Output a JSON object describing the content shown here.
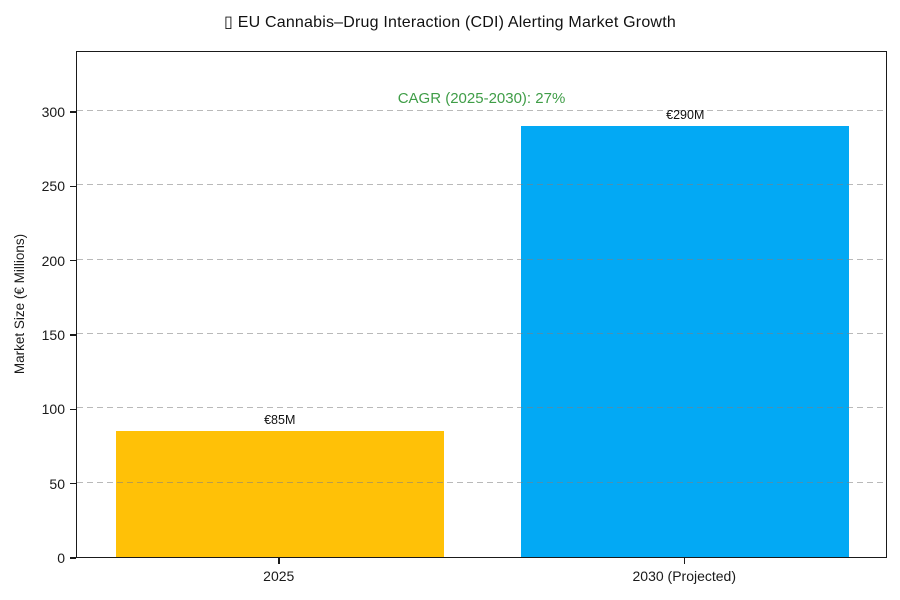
{
  "chart_data": {
    "type": "bar",
    "title": "▯ EU Cannabis–Drug Interaction (CDI) Alerting Market Growth",
    "categories": [
      "2025",
      "2030 (Projected)"
    ],
    "values": [
      85,
      290
    ],
    "bar_labels": [
      "€85M",
      "€290M"
    ],
    "bar_colors": [
      "#ffc107",
      "#03a9f4"
    ],
    "annotation": {
      "text": "CAGR (2025-2030): 27%",
      "color": "#3f9d47"
    },
    "xlabel": "",
    "ylabel": "Market Size (€ Millions)",
    "yticks": [
      0,
      50,
      100,
      150,
      200,
      250,
      300
    ],
    "ylim": [
      0,
      341
    ],
    "grid": "horizontal-dashed",
    "legend": "none",
    "background": "#ffffff",
    "spines": "full-box"
  }
}
